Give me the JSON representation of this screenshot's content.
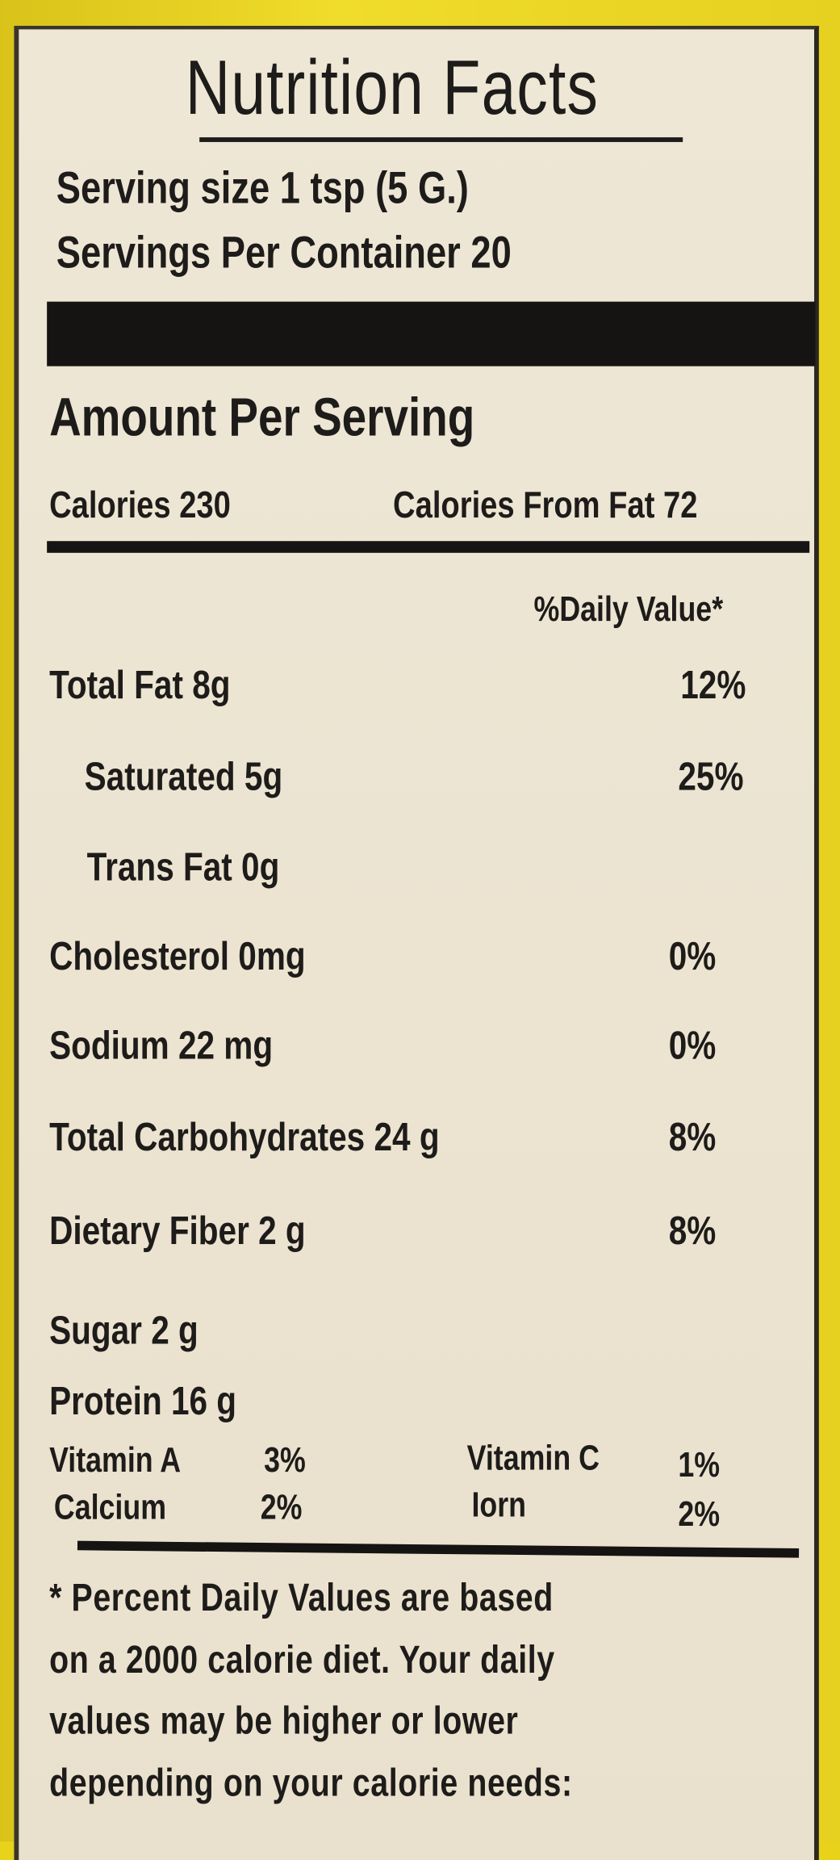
{
  "title": "Nutrition Facts",
  "serving_size": "Serving size 1 tsp (5 G.)",
  "servings_per_container": "Servings Per Container  20",
  "amount_per_serving": "Amount Per Serving",
  "calories": "Calories 230",
  "calories_from_fat": "Calories From Fat 72",
  "daily_value_header": "%Daily Value*",
  "nutrients": [
    {
      "label": "Total Fat 8g",
      "dv": "12%"
    },
    {
      "label": "Saturated  5g",
      "dv": "25%"
    },
    {
      "label": "Trans Fat 0g",
      "dv": ""
    },
    {
      "label": "Cholesterol 0mg",
      "dv": "0%"
    },
    {
      "label": "Sodium 22 mg",
      "dv": "0%"
    },
    {
      "label": "Total Carbohydrates 24 g",
      "dv": "8%"
    },
    {
      "label": "Dietary Fiber 2 g",
      "dv": "8%"
    },
    {
      "label": "Sugar 2 g",
      "dv": ""
    },
    {
      "label": "Protein 16 g",
      "dv": ""
    }
  ],
  "vitamins": [
    {
      "label": "Vitamin A",
      "value": "3%"
    },
    {
      "label": "Vitamin C",
      "value": "1%"
    },
    {
      "label": "Calcium",
      "value": "2%"
    },
    {
      "label": "Iorn",
      "value": "2%"
    }
  ],
  "footnote": [
    "* Percent Daily Values are based",
    "on a 2000 calorie diet. Your daily",
    "values may be higher or lower",
    "depending on your calorie needs:"
  ]
}
